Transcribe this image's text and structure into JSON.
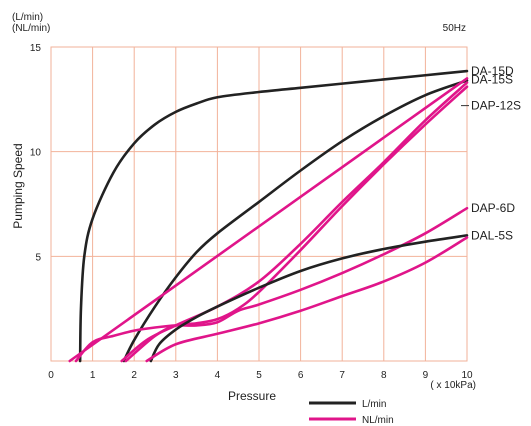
{
  "chart_data": {
    "type": "line",
    "units_top": [
      "(L/min)",
      "(NL/min)"
    ],
    "frequency_label": "50Hz",
    "xlabel": "Pressure",
    "x_unit_label": "( x 10kPa)",
    "ylabel": "Pumping Speed",
    "xlim": [
      0,
      10
    ],
    "ylim": [
      0,
      15
    ],
    "x_ticks": [
      0,
      1,
      2,
      3,
      4,
      5,
      6,
      7,
      8,
      9,
      10
    ],
    "y_ticks": [
      5,
      10,
      15
    ],
    "grid": true,
    "colors": {
      "L_per_min": "#222222",
      "NL_per_min": "#e0158a",
      "grid": "#f2b29a"
    },
    "legend": [
      {
        "label": "L/min",
        "kind": "L_per_min"
      },
      {
        "label": "NL/min",
        "kind": "NL_per_min"
      }
    ],
    "series": [
      {
        "name": "DA-15D",
        "kind": "L_per_min",
        "points": [
          [
            0.7,
            0
          ],
          [
            0.72,
            2.5
          ],
          [
            0.8,
            5
          ],
          [
            1,
            6.8
          ],
          [
            1.5,
            9
          ],
          [
            2,
            10.4
          ],
          [
            2.5,
            11.3
          ],
          [
            3,
            11.9
          ],
          [
            3.5,
            12.3
          ],
          [
            4,
            12.6
          ],
          [
            5,
            12.85
          ],
          [
            6,
            13.05
          ],
          [
            7,
            13.25
          ],
          [
            8,
            13.45
          ],
          [
            9,
            13.65
          ],
          [
            10,
            13.85
          ]
        ]
      },
      {
        "name": "DA-15S",
        "kind": "L_per_min",
        "points": [
          [
            1.75,
            0
          ],
          [
            2,
            1
          ],
          [
            2.5,
            2.6
          ],
          [
            3,
            4
          ],
          [
            3.5,
            5.2
          ],
          [
            4,
            6.1
          ],
          [
            5,
            7.6
          ],
          [
            6,
            9.1
          ],
          [
            7,
            10.5
          ],
          [
            8,
            11.7
          ],
          [
            9,
            12.7
          ],
          [
            10,
            13.4
          ]
        ]
      },
      {
        "name": "DA-15S",
        "kind": "NL_per_min",
        "points": [
          [
            0.45,
            0
          ],
          [
            10,
            13.5
          ]
        ]
      },
      {
        "name": "DAP-12S",
        "kind": "NL_per_min",
        "points": [
          [
            1.8,
            0
          ],
          [
            2.5,
            1.2
          ],
          [
            3,
            1.7
          ],
          [
            3.5,
            1.8
          ],
          [
            4,
            2
          ],
          [
            4.5,
            2.5
          ],
          [
            5,
            3.3
          ],
          [
            6,
            5.3
          ],
          [
            7,
            7.4
          ],
          [
            8,
            9.4
          ],
          [
            9,
            11.3
          ],
          [
            10,
            13.1
          ]
        ]
      },
      {
        "name": "DAP-12S",
        "kind": "NL_per_min",
        "points": [
          [
            1.7,
            0
          ],
          [
            2.3,
            1
          ],
          [
            3,
            1.7
          ],
          [
            4,
            2.6
          ],
          [
            5,
            3.8
          ],
          [
            6,
            5.6
          ],
          [
            7,
            7.6
          ],
          [
            8,
            9.5
          ],
          [
            9,
            11.5
          ],
          [
            10,
            13.3
          ]
        ]
      },
      {
        "name": "DAP-6D",
        "kind": "NL_per_min",
        "points": [
          [
            0.6,
            0
          ],
          [
            1,
            0.9
          ],
          [
            1.5,
            1.2
          ],
          [
            2,
            1.45
          ],
          [
            2.5,
            1.6
          ],
          [
            3,
            1.7
          ],
          [
            3.5,
            1.7
          ],
          [
            4,
            1.85
          ],
          [
            4.5,
            2.4
          ],
          [
            5,
            2.7
          ],
          [
            6,
            3.4
          ],
          [
            7,
            4.2
          ],
          [
            8,
            5.1
          ],
          [
            9,
            6.1
          ],
          [
            10,
            7.3
          ]
        ]
      },
      {
        "name": "DAL-5S",
        "kind": "L_per_min",
        "points": [
          [
            2.4,
            0
          ],
          [
            2.6,
            0.8
          ],
          [
            3,
            1.5
          ],
          [
            3.5,
            2.1
          ],
          [
            4,
            2.6
          ],
          [
            5,
            3.5
          ],
          [
            6,
            4.3
          ],
          [
            7,
            4.9
          ],
          [
            8,
            5.35
          ],
          [
            9,
            5.7
          ],
          [
            10,
            6
          ]
        ]
      },
      {
        "name": "DAL-5S",
        "kind": "NL_per_min",
        "points": [
          [
            2.3,
            0
          ],
          [
            3,
            0.8
          ],
          [
            4,
            1.3
          ],
          [
            5,
            1.8
          ],
          [
            6,
            2.4
          ],
          [
            7,
            3.1
          ],
          [
            8,
            3.8
          ],
          [
            9,
            4.7
          ],
          [
            10,
            5.9
          ]
        ]
      }
    ],
    "curve_labels": [
      {
        "text": "DA-15D",
        "x": 10,
        "y": 13.85
      },
      {
        "text": "DA-15S",
        "x": 10,
        "y": 13.45
      },
      {
        "text": "DAP-12S",
        "x": 10,
        "y": 12.2
      },
      {
        "text": "DAP-6D",
        "x": 10,
        "y": 7.3
      },
      {
        "text": "DAL-5S",
        "x": 10,
        "y": 6.0
      }
    ]
  }
}
